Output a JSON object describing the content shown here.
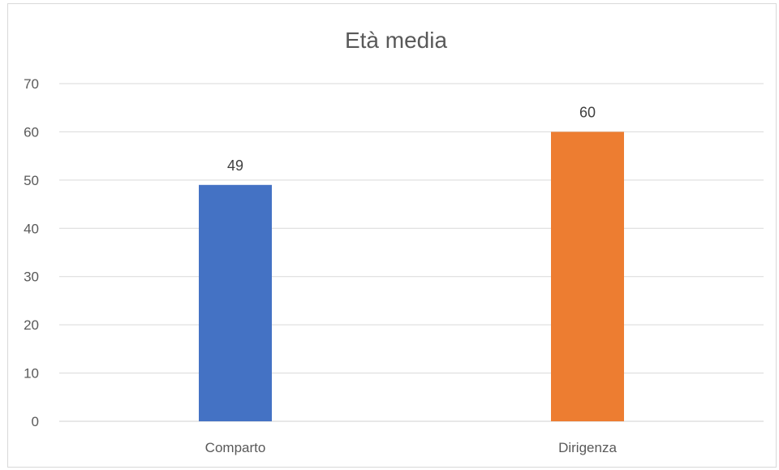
{
  "chart_data": {
    "type": "bar",
    "title": "Età media",
    "categories": [
      "Comparto",
      "Dirigenza"
    ],
    "values": [
      49,
      60
    ],
    "colors": [
      "#4472c4",
      "#ed7d31"
    ],
    "ylim": [
      0,
      70
    ],
    "yticks": [
      0,
      10,
      20,
      30,
      40,
      50,
      60,
      70
    ],
    "grid": true,
    "data_labels": true,
    "legend": "none"
  }
}
